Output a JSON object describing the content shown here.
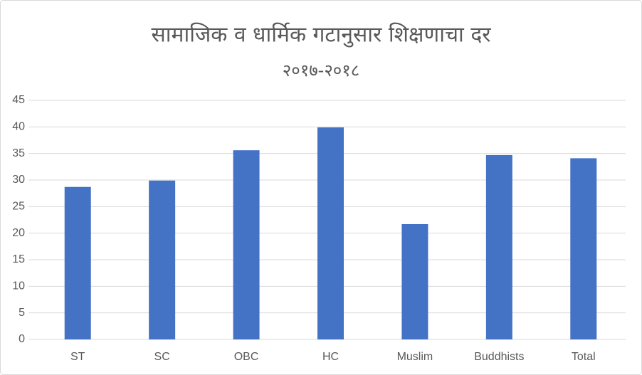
{
  "chart_data": {
    "type": "bar",
    "title": "सामाजिक व धार्मिक गटानुसार शिक्षणाचा दर",
    "subtitle": "२०१७-२०१८",
    "categories": [
      "ST",
      "SC",
      "OBC",
      "HC",
      "Muslim",
      "Buddhists",
      "Total"
    ],
    "values": [
      28.7,
      29.9,
      35.6,
      39.9,
      21.7,
      34.7,
      34.1
    ],
    "color": "#4472c4",
    "ylim": [
      0,
      45
    ],
    "yticks": [
      0,
      5,
      10,
      15,
      20,
      25,
      30,
      35,
      40,
      45
    ],
    "grid": true
  }
}
